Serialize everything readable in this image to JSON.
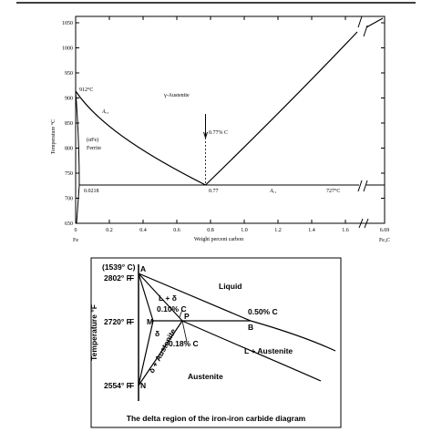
{
  "top_figure": {
    "y_axis_label": "Temperature °C",
    "x_axis_label": "Weight percent carbon",
    "y_tick_labels": [
      "1050",
      "1000",
      "950",
      "900",
      "850",
      "800",
      "750",
      "700",
      "650"
    ],
    "x_tick_labels": [
      "0",
      "0.2",
      "0.4",
      "0.6",
      "0.8",
      "1.0",
      "1.2",
      "1.4",
      "1.6",
      "6.69"
    ],
    "x_end_labels": [
      "Fe",
      "Fe₃C"
    ],
    "annotations": {
      "austenite": "γ-Austenite",
      "t912": "912°C",
      "a3": "Aₑ₃",
      "alpha": "(αFe)",
      "ferrite": "Ferrite",
      "eutectoid": "0.77% C",
      "c0218": "0.0218",
      "c077": "0.77",
      "ae1": "Aₑ₁",
      "t727": "727°C"
    }
  },
  "bottom_figure": {
    "y_axis_label": "Temperature °F",
    "labels": {
      "t1539c": "(1539° C)",
      "a": "A",
      "t2802": "2802° F",
      "f1": "F",
      "t2720": "2720° F",
      "f2": "F",
      "t2554": "2554° F",
      "f3": "F",
      "n": "N",
      "m": "M",
      "p": "P",
      "b": "B",
      "c1": "0.10% C",
      "c2": "0.50% C",
      "c3": "0.18% C",
      "liquid": "Liquid",
      "l_delta": "L + δ",
      "delta": "δ",
      "delta_aus": "δ + Austenite",
      "l_aus": "L + Austenite",
      "austenite": "Austenite"
    },
    "caption": "The delta region of the iron-iron carbide diagram"
  }
}
